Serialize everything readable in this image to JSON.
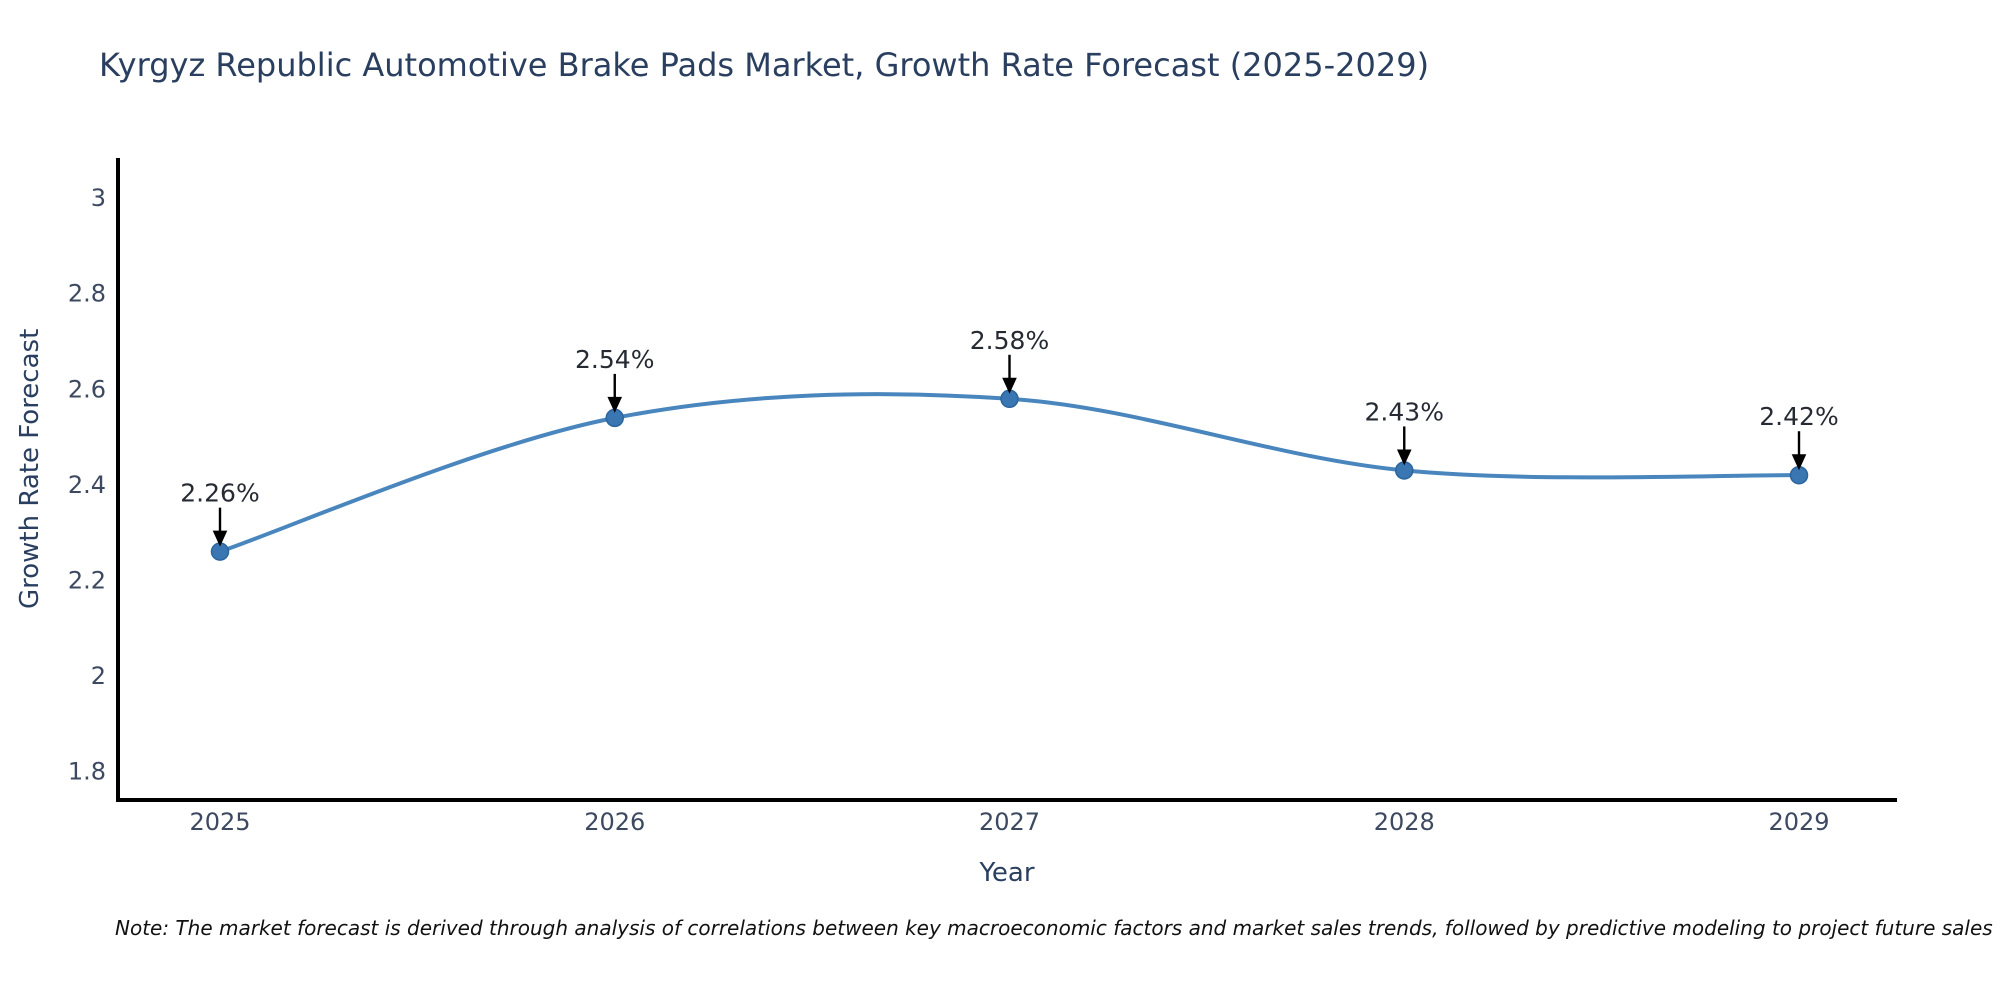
{
  "chart_data": {
    "type": "line",
    "title": "Kyrgyz Republic Automotive Brake Pads Market, Growth Rate Forecast (2025-2029)",
    "xlabel": "Year",
    "ylabel": "Growth Rate Forecast",
    "x": [
      2025,
      2026,
      2027,
      2028,
      2029
    ],
    "series": [
      {
        "name": "Growth Rate Forecast",
        "values": [
          2.26,
          2.54,
          2.58,
          2.43,
          2.42
        ]
      }
    ],
    "point_labels": [
      "2.26%",
      "2.54%",
      "2.58%",
      "2.43%",
      "2.42%"
    ],
    "xticks": [
      "2025",
      "2026",
      "2027",
      "2028",
      "2029"
    ],
    "yticks": [
      "1.8",
      "2",
      "2.2",
      "2.4",
      "2.6",
      "2.8",
      "3"
    ],
    "ylim": [
      1.74,
      3.08
    ],
    "line_shape": "spline",
    "grid": false,
    "legend_position": "none",
    "colors": {
      "line": "#4a86be",
      "marker": "#3a76b1",
      "marker_edge": "#2b659e",
      "axis": "#000000",
      "arrow": "#000000",
      "annotation_text": "#262b33",
      "tick_label": "#3c4961",
      "axis_label": "#2a3f5f",
      "title": "#2a3f5f",
      "note": "#111111"
    }
  },
  "footer": {
    "note": "Note: The market forecast is derived through analysis of correlations between key macroeconomic factors and market sales trends, followed by predictive modeling to project future sales"
  }
}
